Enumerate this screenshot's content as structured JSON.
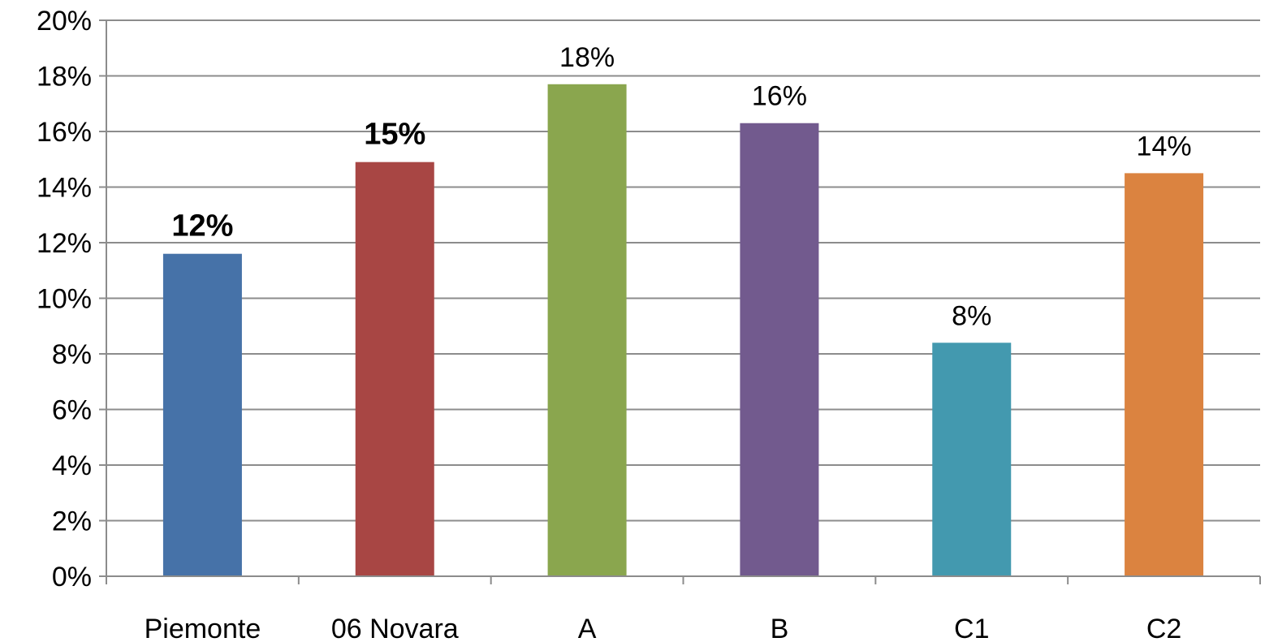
{
  "chart_data": {
    "type": "bar",
    "categories": [
      "Piemonte",
      "06 Novara",
      "A",
      "B",
      "C1",
      "C2"
    ],
    "values": [
      11.6,
      14.9,
      17.7,
      16.3,
      8.4,
      14.5
    ],
    "data_labels": [
      "12%",
      "15%",
      "18%",
      "16%",
      "8%",
      "14%"
    ],
    "bold_labels": [
      true,
      true,
      false,
      false,
      false,
      false
    ],
    "colors": [
      "#4672A8",
      "#A84644",
      "#8AA64E",
      "#725A8E",
      "#4399AF",
      "#DB8340"
    ],
    "ylim": [
      0,
      20
    ],
    "y_ticks": [
      0,
      2,
      4,
      6,
      8,
      10,
      12,
      14,
      16,
      18,
      20
    ],
    "y_tick_labels": [
      "0%",
      "2%",
      "4%",
      "6%",
      "8%",
      "10%",
      "12%",
      "14%",
      "16%",
      "18%",
      "20%"
    ],
    "grid": true,
    "legend": "none",
    "title": "",
    "xlabel": "",
    "ylabel": ""
  }
}
